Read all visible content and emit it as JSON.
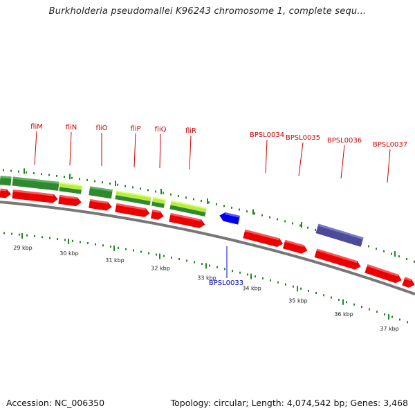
{
  "title": "Burkholderia pseudomallei K96243 chromosome 1, complete sequ...",
  "footer": {
    "accession": "Accession: NC_006350",
    "summary": "Topology: circular; Length: 4,074,542 bp; Genes: 3,468"
  },
  "colors": {
    "forward_gene": "#ee0000",
    "reverse_gene": "#0000ee",
    "gene_label": "#cc0000",
    "reverse_label": "#0000cc",
    "tick": "#228822",
    "cog_dark_green": "#2f8a2f",
    "cog_light_green": "#b6ee3a",
    "cog_purple": "#4b4b99",
    "backbone": "#777777"
  },
  "kbp_labels": [
    "29 kbp",
    "30 kbp",
    "31 kbp",
    "32 kbp",
    "33 kbp",
    "34 kbp",
    "35 kbp",
    "36 kbp",
    "37 kbp"
  ],
  "genes": [
    {
      "name": "fliM",
      "strand": "forward"
    },
    {
      "name": "fliN",
      "strand": "forward"
    },
    {
      "name": "fliO",
      "strand": "forward"
    },
    {
      "name": "fliP",
      "strand": "forward"
    },
    {
      "name": "fliQ",
      "strand": "forward"
    },
    {
      "name": "fliR",
      "strand": "forward"
    },
    {
      "name": "BPSL0033",
      "strand": "reverse"
    },
    {
      "name": "BPSL0034",
      "strand": "forward"
    },
    {
      "name": "BPSL0035",
      "strand": "forward"
    },
    {
      "name": "BPSL0036",
      "strand": "forward"
    },
    {
      "name": "BPSL0037",
      "strand": "forward"
    }
  ]
}
